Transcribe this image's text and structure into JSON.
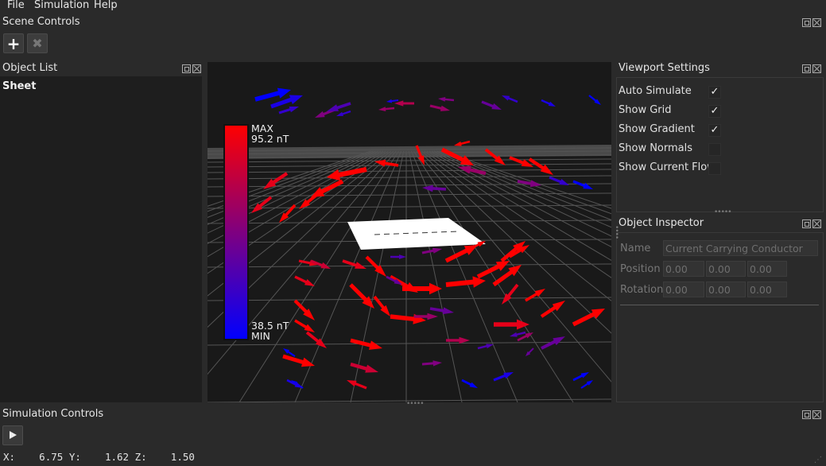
{
  "menu": [
    "File",
    "Simulation",
    "Help"
  ],
  "docks": {
    "scene_controls": "Scene Controls",
    "object_list": "Object List",
    "viewport_settings": "Viewport Settings",
    "object_inspector": "Object Inspector",
    "simulation_controls": "Simulation Controls"
  },
  "scene_controls": {
    "add_icon": "plus-icon",
    "remove_icon": "x-icon"
  },
  "object_list": {
    "items": [
      "Sheet"
    ]
  },
  "legend": {
    "max_label": "MAX",
    "max_value": "95.2 nT",
    "min_value": "38.5 nT",
    "min_label": "MIN",
    "max_color": "#ff0000",
    "min_color": "#0000ff"
  },
  "viewport_settings": {
    "options": [
      {
        "label": "Auto Simulate",
        "checked": true
      },
      {
        "label": "Show Grid",
        "checked": true
      },
      {
        "label": "Show Gradient",
        "checked": true
      },
      {
        "label": "Show Normals",
        "checked": false
      },
      {
        "label": "Show Current Flow",
        "checked": false
      }
    ]
  },
  "inspector": {
    "name_label": "Name",
    "name_value": "Current Carrying Conductor",
    "position_label": "Position",
    "position": [
      "0.00",
      "0.00",
      "0.00"
    ],
    "rotation_label": "Rotation",
    "rotation": [
      "0.00",
      "0.00",
      "0.00"
    ]
  },
  "status": {
    "x_label": "X:",
    "x": "6.75",
    "y_label": "Y:",
    "y": "1.62",
    "z_label": "Z:",
    "z": "1.50"
  }
}
